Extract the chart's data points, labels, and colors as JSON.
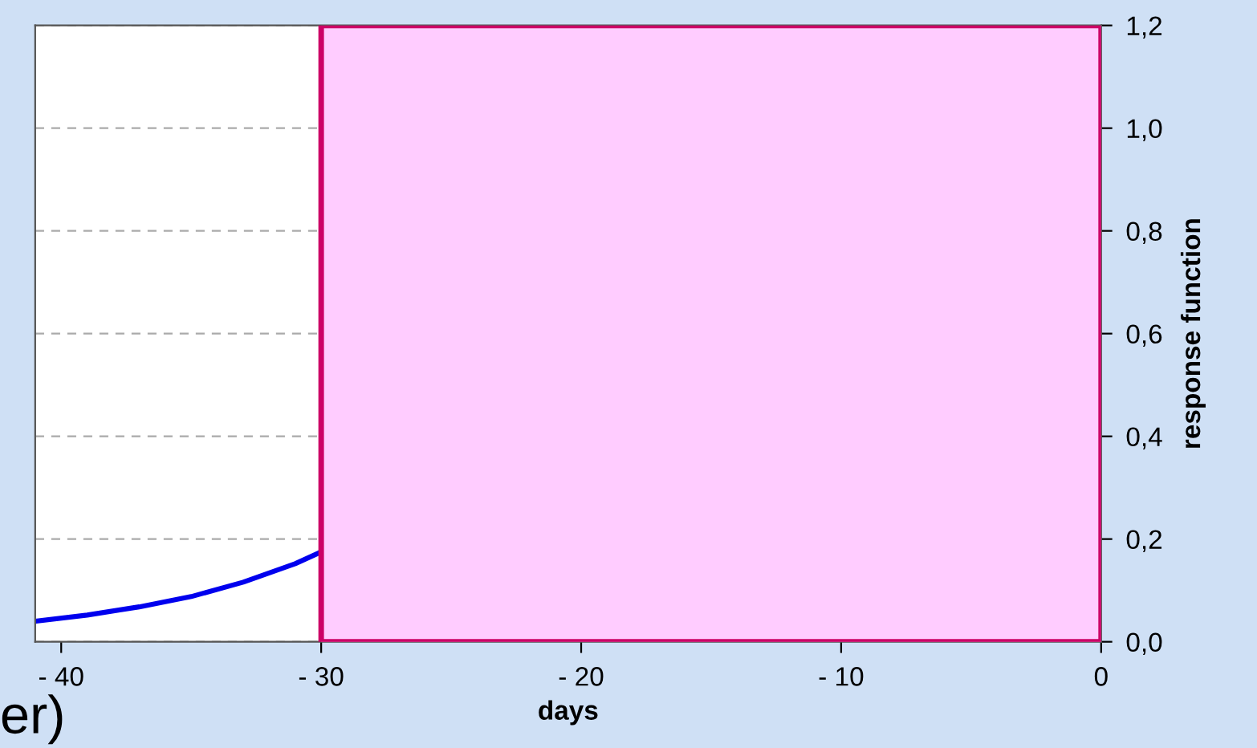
{
  "chart_data": {
    "type": "line",
    "xlabel": "days",
    "ylabel": "response function",
    "x": [
      -41,
      -39,
      -37,
      -35,
      -33,
      -31,
      -30
    ],
    "series": [
      {
        "color": "#0000ee",
        "values": [
          0.04,
          0.052,
          0.068,
          0.088,
          0.116,
          0.152,
          0.175
        ]
      }
    ],
    "xlim": [
      -41,
      0
    ],
    "xticks": [
      {
        "value": -40,
        "label": "- 40"
      },
      {
        "value": -30,
        "label": "- 30"
      },
      {
        "value": -20,
        "label": "- 20"
      },
      {
        "value": -10,
        "label": "- 10"
      },
      0
    ],
    "ylim": [
      0,
      1.2
    ],
    "yticks": [
      {
        "value": 0,
        "label": "0,0"
      },
      {
        "value": 0.2,
        "label": "0,2"
      },
      {
        "value": 0.4,
        "label": "0,4"
      },
      {
        "value": 0.6,
        "label": "0,6"
      },
      {
        "value": 0.8,
        "label": "0,8"
      },
      {
        "value": 1.0,
        "label": "1,0"
      },
      {
        "value": 1.2,
        "label": "1,2"
      }
    ],
    "grid": "y",
    "marker": "none",
    "line_style": "solid",
    "bands": [
      {
        "axis": "x",
        "from": -30,
        "to": 0,
        "color": "#ffccff"
      }
    ],
    "annotations": [
      "er)"
    ]
  }
}
